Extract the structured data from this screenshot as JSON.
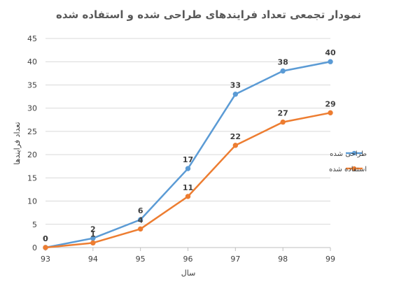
{
  "chart_data": {
    "type": "line",
    "title": "نمودار تجمعی تعداد فرایندهای طراحی شده و استفاده شده",
    "xlabel": "سال",
    "ylabel": "تعداد فرایندها",
    "categories": [
      "93",
      "94",
      "95",
      "96",
      "97",
      "98",
      "99"
    ],
    "ylim": [
      0,
      45
    ],
    "yticks": [
      0,
      5,
      10,
      15,
      20,
      25,
      30,
      35,
      40,
      45
    ],
    "grid": true,
    "legend_position": "right",
    "series": [
      {
        "name": "طراحی شده",
        "color": "#5b9bd5",
        "values": [
          0,
          2,
          6,
          17,
          33,
          38,
          40
        ]
      },
      {
        "name": "استفاده شده",
        "color": "#ed7d31",
        "values": [
          0,
          1,
          4,
          11,
          22,
          27,
          29
        ]
      }
    ]
  }
}
